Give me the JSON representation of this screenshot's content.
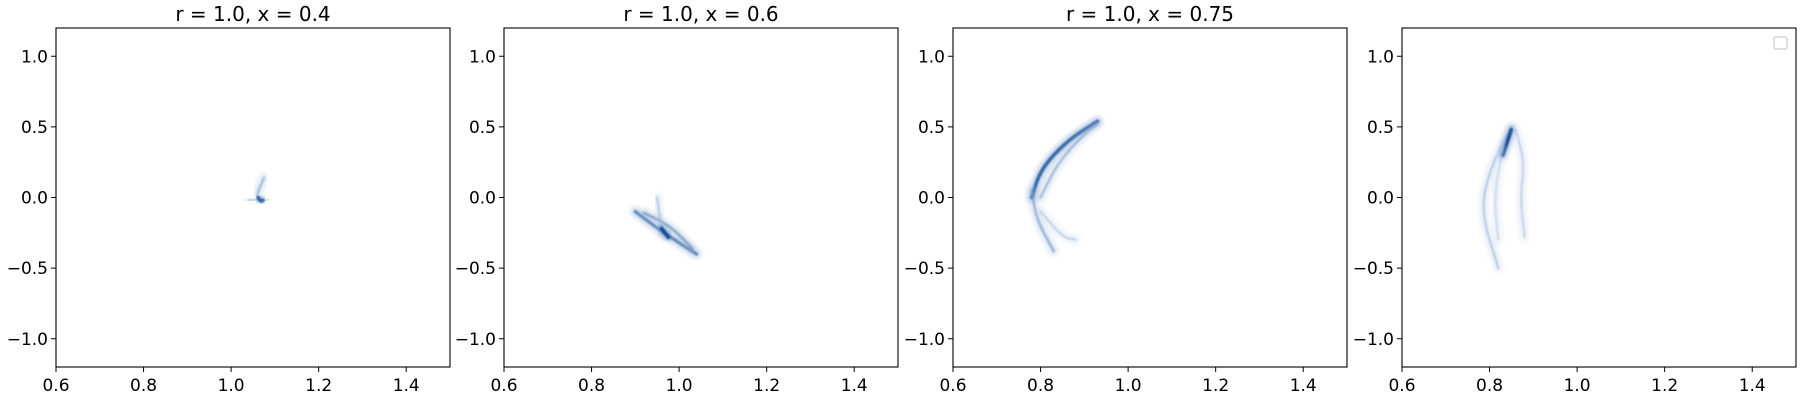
{
  "chart_data": [
    {
      "type": "heatmap",
      "title": "r = 1.0, x = 0.4",
      "xlim": [
        0.6,
        1.5
      ],
      "ylim": [
        -1.2,
        1.2
      ],
      "xticks": [
        0.6,
        0.8,
        1.0,
        1.2,
        1.4
      ],
      "yticks": [
        -1.0,
        -0.5,
        0.0,
        0.5,
        1.0
      ],
      "xtick_labels": [
        "0.6",
        "0.8",
        "1.0",
        "1.2",
        "1.4"
      ],
      "ytick_labels": [
        "−1.0",
        "−0.5",
        "0.0",
        "0.5",
        "1.0"
      ],
      "colormap": "Blues",
      "grid": false,
      "density_ridges": [
        {
          "points": [
            [
              1.06,
              0.02
            ],
            [
              1.065,
              0.07
            ],
            [
              1.075,
              0.14
            ]
          ],
          "intensity": 0.45
        },
        {
          "points": [
            [
              1.04,
              -0.02
            ],
            [
              1.06,
              -0.01
            ],
            [
              1.08,
              -0.02
            ]
          ],
          "intensity": 0.35
        },
        {
          "points": [
            [
              1.062,
              0.0
            ],
            [
              1.068,
              -0.03
            ],
            [
              1.072,
              -0.02
            ]
          ],
          "intensity": 0.9
        }
      ]
    },
    {
      "type": "heatmap",
      "title": "r = 1.0, x = 0.6",
      "xlim": [
        0.6,
        1.5
      ],
      "ylim": [
        -1.2,
        1.2
      ],
      "xticks": [
        0.6,
        0.8,
        1.0,
        1.2,
        1.4
      ],
      "yticks": [
        -1.0,
        -0.5,
        0.0,
        0.5,
        1.0
      ],
      "xtick_labels": [
        "0.6",
        "0.8",
        "1.0",
        "1.2",
        "1.4"
      ],
      "ytick_labels": [
        "−1.0",
        "−0.5",
        "0.0",
        "0.5",
        "1.0"
      ],
      "colormap": "Blues",
      "grid": false,
      "density_ridges": [
        {
          "points": [
            [
              0.9,
              -0.1
            ],
            [
              0.96,
              -0.24
            ],
            [
              1.04,
              -0.4
            ]
          ],
          "intensity": 0.75
        },
        {
          "points": [
            [
              0.92,
              -0.11
            ],
            [
              0.98,
              -0.2
            ],
            [
              1.03,
              -0.36
            ]
          ],
          "intensity": 0.55
        },
        {
          "points": [
            [
              0.95,
              0.0
            ],
            [
              0.955,
              -0.12
            ],
            [
              0.96,
              -0.24
            ]
          ],
          "intensity": 0.35
        },
        {
          "points": [
            [
              0.96,
              -0.22
            ],
            [
              0.975,
              -0.28
            ]
          ],
          "intensity": 1.0
        }
      ]
    },
    {
      "type": "heatmap",
      "title": "r = 1.0, x = 0.75",
      "xlim": [
        0.6,
        1.5
      ],
      "ylim": [
        -1.2,
        1.2
      ],
      "xticks": [
        0.6,
        0.8,
        1.0,
        1.2,
        1.4
      ],
      "yticks": [
        -1.0,
        -0.5,
        0.0,
        0.5,
        1.0
      ],
      "xtick_labels": [
        "0.6",
        "0.8",
        "1.0",
        "1.2",
        "1.4"
      ],
      "ytick_labels": [
        "−1.0",
        "−0.5",
        "0.0",
        "0.5",
        "1.0"
      ],
      "colormap": "Blues",
      "grid": false,
      "density_ridges": [
        {
          "points": [
            [
              0.78,
              0.0
            ],
            [
              0.8,
              0.2
            ],
            [
              0.86,
              0.4
            ],
            [
              0.93,
              0.54
            ]
          ],
          "intensity": 0.9
        },
        {
          "points": [
            [
              0.78,
              0.05
            ],
            [
              0.79,
              -0.15
            ],
            [
              0.83,
              -0.38
            ]
          ],
          "intensity": 0.5
        },
        {
          "points": [
            [
              0.8,
              0.0
            ],
            [
              0.84,
              0.25
            ],
            [
              0.9,
              0.45
            ],
            [
              0.93,
              0.52
            ]
          ],
          "intensity": 0.45
        },
        {
          "points": [
            [
              0.8,
              -0.1
            ],
            [
              0.85,
              -0.28
            ],
            [
              0.88,
              -0.3
            ]
          ],
          "intensity": 0.3
        }
      ]
    },
    {
      "type": "heatmap",
      "title": "",
      "xlim": [
        0.6,
        1.5
      ],
      "ylim": [
        -1.2,
        1.2
      ],
      "xticks": [
        0.6,
        0.8,
        1.0,
        1.2,
        1.4
      ],
      "yticks": [
        -1.0,
        -0.5,
        0.0,
        0.5,
        1.0
      ],
      "xtick_labels": [
        "0.6",
        "0.8",
        "1.0",
        "1.2",
        "1.4"
      ],
      "ytick_labels": [
        "−1.0",
        "−0.5",
        "0.0",
        "0.5",
        "1.0"
      ],
      "colormap": "Blues",
      "grid": false,
      "legend": "top-right",
      "density_ridges": [
        {
          "points": [
            [
              0.85,
              0.5
            ],
            [
              0.8,
              0.2
            ],
            [
              0.78,
              -0.1
            ],
            [
              0.82,
              -0.5
            ]
          ],
          "intensity": 0.35
        },
        {
          "points": [
            [
              0.85,
              0.48
            ],
            [
              0.83,
              0.3
            ]
          ],
          "intensity": 1.0
        },
        {
          "points": [
            [
              0.86,
              0.48
            ],
            [
              0.88,
              0.25
            ],
            [
              0.87,
              0.0
            ],
            [
              0.88,
              -0.28
            ]
          ],
          "intensity": 0.3
        },
        {
          "points": [
            [
              0.83,
              0.35
            ],
            [
              0.81,
              0.0
            ],
            [
              0.82,
              -0.3
            ]
          ],
          "intensity": 0.25
        }
      ]
    }
  ]
}
